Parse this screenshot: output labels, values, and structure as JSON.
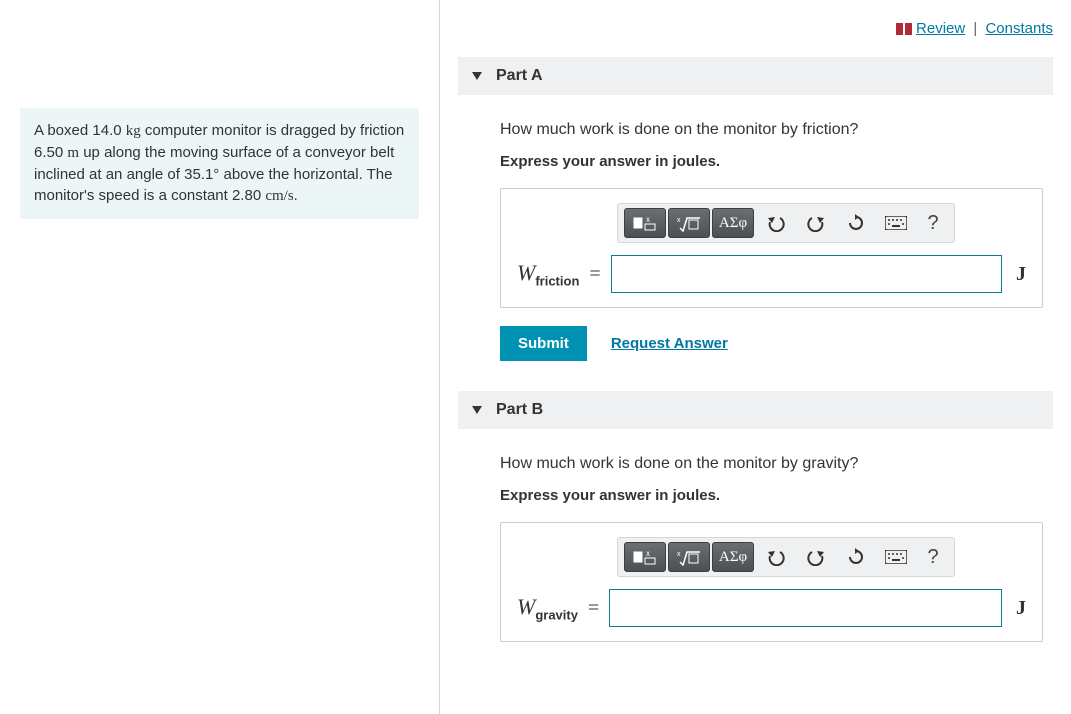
{
  "colors": {
    "accent": "#0092b3",
    "link": "#0079a3",
    "problem_bg": "#ecf6f6",
    "panel_bg": "#eff0f1",
    "input_border": "#0c7d8f",
    "divider": "#c5d9e8",
    "toolbar_dark_top": "#6a6f73",
    "toolbar_dark_bottom": "#4b5054"
  },
  "top_links": {
    "review": "Review",
    "constants": "Constants"
  },
  "problem": {
    "text_html": "A boxed 14.0 <span class='kg'>kg</span> computer monitor is dragged by friction 6.50 <span class='kg'>m</span> up along the moving surface of a conveyor belt inclined at an angle of 35.1° above the horizontal. The monitor's speed is a constant 2.80 <span class='kg'>cm/s</span>.",
    "mass_kg": 14.0,
    "distance_m": 6.5,
    "angle_deg": 35.1,
    "speed_cm_per_s": 2.8
  },
  "parts": [
    {
      "label": "Part A",
      "question": "How much work is done on the monitor by friction?",
      "instruction": "Express your answer in joules.",
      "variable_symbol": "W",
      "variable_subscript": "friction",
      "unit": "J",
      "submit_label": "Submit",
      "request_label": "Request Answer",
      "show_actions": true
    },
    {
      "label": "Part B",
      "question": "How much work is done on the monitor by gravity?",
      "instruction": "Express your answer in joules.",
      "variable_symbol": "W",
      "variable_subscript": "gravity",
      "unit": "J",
      "submit_label": "Submit",
      "request_label": "Request Answer",
      "show_actions": false
    }
  ],
  "toolbar": {
    "greek_label": "ΑΣφ",
    "help_label": "?"
  }
}
